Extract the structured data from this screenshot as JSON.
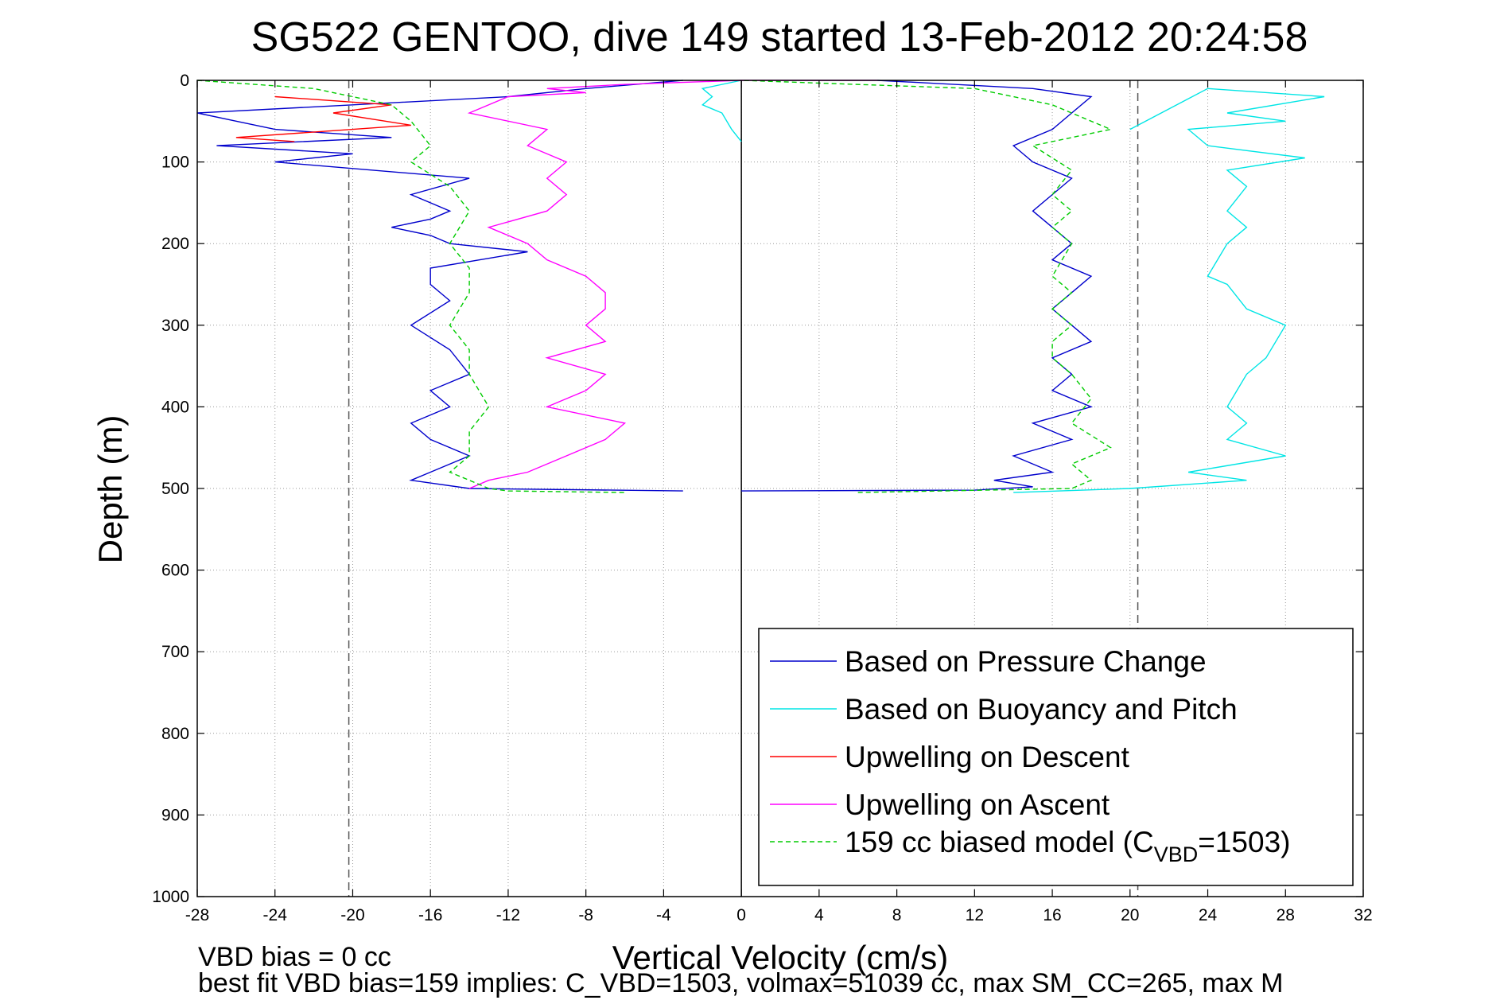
{
  "chart_data": {
    "type": "line",
    "title": "SG522 GENTOO, dive 149 started 13-Feb-2012 20:24:58",
    "xlabel": "Vertical Velocity (cm/s)",
    "ylabel": "Depth (m)",
    "xlim": [
      -28,
      32
    ],
    "ylim": [
      0,
      1000
    ],
    "y_reversed": true,
    "grid": true,
    "x_ticks": [
      "-28",
      "-24",
      "-20",
      "-16",
      "-12",
      "-8",
      "-4",
      "0",
      "4",
      "8",
      "12",
      "16",
      "20",
      "24",
      "28",
      "32"
    ],
    "x_tick_values": [
      -28,
      -24,
      -20,
      -16,
      -12,
      -8,
      -4,
      0,
      4,
      8,
      12,
      16,
      20,
      24,
      28,
      32
    ],
    "y_ticks": [
      "0",
      "100",
      "200",
      "300",
      "400",
      "500",
      "600",
      "700",
      "800",
      "900",
      "1000"
    ],
    "y_tick_values": [
      0,
      100,
      200,
      300,
      400,
      500,
      600,
      700,
      800,
      900,
      1000
    ],
    "reference_lines": [
      {
        "x": -20.2,
        "style": "dashed",
        "color": "#555555"
      },
      {
        "x": 20.4,
        "style": "dashed",
        "color": "#555555"
      },
      {
        "x": 0,
        "style": "solid",
        "color": "#000000"
      }
    ],
    "legend_position": "bottom-right",
    "series": [
      {
        "name": "Based on Pressure Change",
        "color": "#0000cc",
        "dash": "none",
        "segments": [
          {
            "x": [
              -3,
              -8,
              -12,
              -20,
              -28,
              -26,
              -24,
              -18,
              -27,
              -20,
              -24,
              -14,
              -17,
              -15,
              -16,
              -18,
              -16,
              -15,
              -11,
              -16,
              -16,
              -15,
              -17,
              -15,
              -14,
              -16,
              -15,
              -17,
              -16,
              -14,
              -16,
              -17,
              -14,
              -3
            ],
            "y": [
              0,
              10,
              20,
              30,
              40,
              50,
              60,
              70,
              80,
              90,
              100,
              120,
              140,
              160,
              170,
              180,
              190,
              200,
              210,
              230,
              250,
              270,
              300,
              330,
              360,
              380,
              400,
              420,
              440,
              460,
              480,
              490,
              500,
              503
            ]
          },
          {
            "x": [
              0,
              12,
              15,
              13,
              16,
              14,
              17,
              15,
              18,
              16,
              17,
              16,
              18,
              17,
              16,
              17,
              18,
              16,
              17,
              16,
              15,
              16,
              17,
              15,
              14,
              16,
              17,
              18,
              15,
              7
            ],
            "y": [
              503,
              502,
              498,
              490,
              480,
              460,
              440,
              420,
              400,
              380,
              360,
              340,
              320,
              300,
              280,
              260,
              240,
              220,
              200,
              180,
              160,
              140,
              120,
              100,
              80,
              60,
              40,
              20,
              10,
              0
            ]
          }
        ]
      },
      {
        "name": "Based on Buoyancy and Pitch",
        "color": "#00e5e5",
        "dash": "none",
        "segments": [
          {
            "x": [
              0,
              -2,
              -1.5,
              -2,
              -1,
              -0.5,
              0
            ],
            "y": [
              0,
              10,
              20,
              30,
              40,
              60,
              75
            ]
          },
          {
            "x": [
              20,
              24,
              30,
              25,
              28,
              23,
              24,
              29,
              25,
              26,
              25,
              26,
              25,
              24,
              25,
              26,
              28,
              27,
              26,
              25,
              26,
              25,
              28,
              23,
              26,
              20,
              14
            ],
            "y": [
              60,
              10,
              20,
              40,
              50,
              60,
              80,
              95,
              110,
              130,
              160,
              180,
              200,
              240,
              250,
              280,
              300,
              340,
              360,
              400,
              420,
              440,
              460,
              480,
              490,
              500,
              505
            ]
          }
        ]
      },
      {
        "name": "Upwelling on Descent",
        "color": "#ff0000",
        "dash": "none",
        "segments": [
          {
            "x": [
              -24,
              -18,
              -21,
              -17,
              -20,
              -26,
              -23
            ],
            "y": [
              20,
              30,
              40,
              55,
              60,
              70,
              75
            ]
          }
        ]
      },
      {
        "name": "Upwelling on Ascent",
        "color": "#ff00ff",
        "dash": "none",
        "segments": [
          {
            "x": [
              -14,
              -13,
              -11,
              -9,
              -7,
              -6,
              -10,
              -9,
              -8,
              -7,
              -10,
              -7,
              -8,
              -7,
              -7,
              -8,
              -10,
              -11,
              -13,
              -10,
              -9,
              -10,
              -9,
              -11,
              -10,
              -14,
              -12
            ],
            "y": [
              500,
              490,
              480,
              460,
              440,
              420,
              400,
              390,
              380,
              360,
              340,
              320,
              300,
              280,
              260,
              240,
              220,
              200,
              180,
              160,
              140,
              120,
              100,
              80,
              60,
              40,
              20
            ]
          },
          {
            "x": [
              -12,
              -8,
              -10,
              -6,
              0,
              7
            ],
            "y": [
              20,
              15,
              10,
              5,
              0,
              0
            ]
          }
        ]
      },
      {
        "name": "159 cc biased model (C_VBD=1503)",
        "color": "#00cc00",
        "dash": "6,4",
        "segments": [
          {
            "x": [
              -28,
              -22,
              -18,
              -17,
              -16,
              -17,
              -15,
              -14,
              -15,
              -14,
              -14,
              -15,
              -14,
              -14,
              -13,
              -14,
              -14,
              -15,
              -14,
              -13,
              -12,
              -6
            ],
            "y": [
              0,
              10,
              30,
              50,
              80,
              100,
              130,
              160,
              200,
              230,
              260,
              300,
              330,
              360,
              400,
              430,
              460,
              480,
              490,
              500,
              503,
              505
            ]
          },
          {
            "x": [
              6,
              17,
              18,
              17,
              19,
              17,
              18,
              17,
              16,
              16,
              17,
              16,
              17,
              16,
              17,
              16,
              17,
              16,
              17,
              15,
              19,
              16,
              12,
              0
            ],
            "y": [
              505,
              500,
              490,
              470,
              450,
              420,
              390,
              360,
              340,
              320,
              300,
              280,
              260,
              240,
              200,
              180,
              160,
              140,
              110,
              80,
              60,
              30,
              10,
              0
            ]
          }
        ]
      }
    ],
    "legend": [
      {
        "label": "Based on Pressure Change",
        "color": "#0000cc",
        "dash": "none"
      },
      {
        "label": "Based on Buoyancy and Pitch",
        "color": "#00e5e5",
        "dash": "none"
      },
      {
        "label": "Upwelling on Descent",
        "color": "#ff0000",
        "dash": "none"
      },
      {
        "label": "Upwelling on Ascent",
        "color": "#ff00ff",
        "dash": "none"
      },
      {
        "label_main": "159 cc biased model (C",
        "label_sub": "VBD",
        "label_tail": "=1503)",
        "color": "#00cc00",
        "dash": "6,4"
      }
    ],
    "annotations": [
      "VBD bias = 0 cc",
      "best fit VBD bias=159 implies: C_VBD=1503, volmax=51039 cc, max SM_CC=265, max M"
    ]
  }
}
